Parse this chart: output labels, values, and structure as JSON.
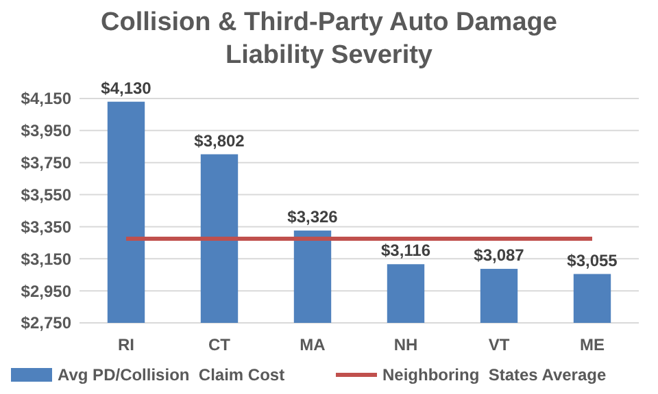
{
  "chart_data": {
    "type": "bar",
    "title": "Collision & Third-Party Auto Damage Liability Severity",
    "categories": [
      "RI",
      "CT",
      "MA",
      "NH",
      "VT",
      "ME"
    ],
    "series": [
      {
        "name": "Avg PD/Collision  Claim Cost",
        "color": "#4f81bd",
        "values": [
          4130,
          3802,
          3326,
          3116,
          3087,
          3055
        ],
        "value_labels": [
          "$4,130",
          "$3,802",
          "$3,326",
          "$3,116",
          "$3,087",
          "$3,055"
        ]
      },
      {
        "name": "Neighboring  States Average",
        "type": "line",
        "color": "#c0504d",
        "values": [
          3275,
          3275,
          3275,
          3275,
          3275,
          3275
        ]
      }
    ],
    "ylim": [
      2750,
      4150
    ],
    "yticks": [
      {
        "value": 2750,
        "label": "$2,750"
      },
      {
        "value": 2950,
        "label": "$2,950"
      },
      {
        "value": 3150,
        "label": "$3,150"
      },
      {
        "value": 3350,
        "label": "$3,350"
      },
      {
        "value": 3550,
        "label": "$3,550"
      },
      {
        "value": 3750,
        "label": "$3,750"
      },
      {
        "value": 3950,
        "label": "$3,950"
      },
      {
        "value": 4150,
        "label": "$4,150"
      }
    ],
    "grid": "y",
    "legend": "bottom",
    "marker": "none"
  }
}
